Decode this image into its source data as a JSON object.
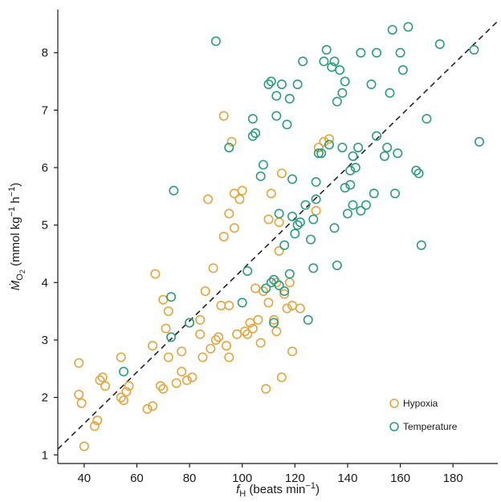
{
  "chart_data": {
    "type": "scatter",
    "xlabel": {
      "base": "f",
      "sub": "H",
      "rest": " (beats min",
      "sup": "−1",
      "close": ")"
    },
    "ylabel": {
      "base": "Ṁ",
      "sub": "O",
      "subsub": "2",
      "rest": " (mmol kg",
      "sup1": "−1",
      "mid": " h",
      "sup2": "−1",
      "close": ")"
    },
    "xlim": [
      30,
      197
    ],
    "ylim": [
      0.85,
      8.75
    ],
    "xticks": [
      40,
      60,
      80,
      100,
      120,
      140,
      160,
      180
    ],
    "yticks": [
      1,
      2,
      3,
      4,
      5,
      6,
      7,
      8
    ],
    "legend_position": "bottom-right",
    "grid": false,
    "regression_line": {
      "style": "dashed",
      "color": "#222222",
      "x": [
        30,
        197
      ],
      "y": [
        1.1,
        8.55
      ]
    },
    "series": [
      {
        "name": "Hypoxia",
        "color": "#E8A33A",
        "points": [
          [
            38,
            2.6
          ],
          [
            38,
            2.05
          ],
          [
            39,
            1.9
          ],
          [
            40,
            1.15
          ],
          [
            44,
            1.5
          ],
          [
            45,
            1.6
          ],
          [
            46,
            2.3
          ],
          [
            47,
            2.35
          ],
          [
            48,
            2.2
          ],
          [
            54,
            2.0
          ],
          [
            54,
            2.7
          ],
          [
            55,
            1.95
          ],
          [
            56,
            2.1
          ],
          [
            57,
            2.2
          ],
          [
            64,
            1.8
          ],
          [
            66,
            1.85
          ],
          [
            66,
            2.9
          ],
          [
            67,
            4.15
          ],
          [
            69,
            2.2
          ],
          [
            70,
            2.15
          ],
          [
            70,
            3.7
          ],
          [
            71,
            3.2
          ],
          [
            72,
            2.7
          ],
          [
            72,
            3.5
          ],
          [
            75,
            2.25
          ],
          [
            77,
            2.45
          ],
          [
            77,
            2.8
          ],
          [
            79,
            2.3
          ],
          [
            80,
            3.3
          ],
          [
            81,
            2.35
          ],
          [
            84,
            3.35
          ],
          [
            84,
            3.1
          ],
          [
            85,
            2.7
          ],
          [
            86,
            3.85
          ],
          [
            87,
            5.45
          ],
          [
            88,
            2.85
          ],
          [
            89,
            4.25
          ],
          [
            90,
            3.0
          ],
          [
            91,
            3.05
          ],
          [
            92,
            3.6
          ],
          [
            93,
            4.8
          ],
          [
            93,
            6.9
          ],
          [
            94,
            2.9
          ],
          [
            95,
            2.7
          ],
          [
            95,
            3.6
          ],
          [
            95,
            5.2
          ],
          [
            96,
            6.45
          ],
          [
            97,
            4.95
          ],
          [
            97,
            5.55
          ],
          [
            98,
            3.1
          ],
          [
            99,
            5.45
          ],
          [
            100,
            5.6
          ],
          [
            101,
            3.15
          ],
          [
            102,
            3.1
          ],
          [
            103,
            3.3
          ],
          [
            104,
            3.2
          ],
          [
            105,
            3.9
          ],
          [
            106,
            3.35
          ],
          [
            107,
            2.95
          ],
          [
            108,
            3.85
          ],
          [
            109,
            2.15
          ],
          [
            110,
            3.65
          ],
          [
            110,
            5.1
          ],
          [
            111,
            5.55
          ],
          [
            112,
            3.35
          ],
          [
            113,
            3.15
          ],
          [
            113,
            4.0
          ],
          [
            114,
            4.55
          ],
          [
            114,
            5.05
          ],
          [
            115,
            2.35
          ],
          [
            115,
            5.9
          ],
          [
            116,
            3.8
          ],
          [
            117,
            3.55
          ],
          [
            118,
            4.0
          ],
          [
            119,
            3.6
          ],
          [
            119,
            2.8
          ],
          [
            122,
            3.55
          ],
          [
            128,
            5.25
          ],
          [
            129,
            6.35
          ],
          [
            131,
            6.45
          ],
          [
            133,
            6.5
          ]
        ]
      },
      {
        "name": "Temperature",
        "color": "#2A9D7E",
        "points": [
          [
            55,
            2.45
          ],
          [
            73,
            3.05
          ],
          [
            73,
            3.75
          ],
          [
            74,
            5.6
          ],
          [
            80,
            3.3
          ],
          [
            90,
            8.2
          ],
          [
            95,
            6.35
          ],
          [
            100,
            3.65
          ],
          [
            102,
            4.2
          ],
          [
            104,
            6.85
          ],
          [
            104,
            6.55
          ],
          [
            105,
            6.6
          ],
          [
            107,
            5.85
          ],
          [
            108,
            6.05
          ],
          [
            109,
            3.9
          ],
          [
            110,
            7.45
          ],
          [
            111,
            4.0
          ],
          [
            111,
            7.5
          ],
          [
            112,
            3.3
          ],
          [
            112,
            4.05
          ],
          [
            113,
            6.9
          ],
          [
            113,
            7.25
          ],
          [
            114,
            3.95
          ],
          [
            114,
            5.2
          ],
          [
            115,
            7.45
          ],
          [
            116,
            3.85
          ],
          [
            116,
            4.65
          ],
          [
            117,
            6.75
          ],
          [
            118,
            4.15
          ],
          [
            118,
            7.2
          ],
          [
            119,
            5.15
          ],
          [
            119,
            5.8
          ],
          [
            120,
            4.85
          ],
          [
            121,
            5.0
          ],
          [
            121,
            7.45
          ],
          [
            122,
            5.05
          ],
          [
            123,
            7.85
          ],
          [
            124,
            5.35
          ],
          [
            125,
            3.35
          ],
          [
            126,
            4.75
          ],
          [
            127,
            5.1
          ],
          [
            127,
            4.25
          ],
          [
            128,
            5.45
          ],
          [
            128,
            5.75
          ],
          [
            129,
            6.25
          ],
          [
            130,
            6.25
          ],
          [
            131,
            7.85
          ],
          [
            132,
            8.05
          ],
          [
            133,
            6.4
          ],
          [
            134,
            7.75
          ],
          [
            135,
            4.95
          ],
          [
            135,
            7.85
          ],
          [
            136,
            7.15
          ],
          [
            136,
            4.3
          ],
          [
            137,
            7.7
          ],
          [
            138,
            7.3
          ],
          [
            138,
            6.35
          ],
          [
            139,
            5.65
          ],
          [
            139,
            7.5
          ],
          [
            140,
            5.2
          ],
          [
            141,
            5.7
          ],
          [
            141,
            5.95
          ],
          [
            142,
            6.2
          ],
          [
            142,
            5.35
          ],
          [
            143,
            6.0
          ],
          [
            144,
            6.35
          ],
          [
            145,
            8.0
          ],
          [
            145,
            5.25
          ],
          [
            147,
            5.35
          ],
          [
            149,
            7.45
          ],
          [
            150,
            5.55
          ],
          [
            151,
            6.55
          ],
          [
            151,
            8.0
          ],
          [
            154,
            6.2
          ],
          [
            155,
            6.35
          ],
          [
            156,
            7.3
          ],
          [
            157,
            8.4
          ],
          [
            158,
            5.55
          ],
          [
            159,
            6.25
          ],
          [
            160,
            8.0
          ],
          [
            161,
            7.7
          ],
          [
            163,
            8.45
          ],
          [
            166,
            5.95
          ],
          [
            167,
            5.9
          ],
          [
            168,
            4.65
          ],
          [
            170,
            6.85
          ],
          [
            175,
            8.15
          ],
          [
            188,
            8.05
          ],
          [
            190,
            6.45
          ]
        ]
      }
    ]
  }
}
